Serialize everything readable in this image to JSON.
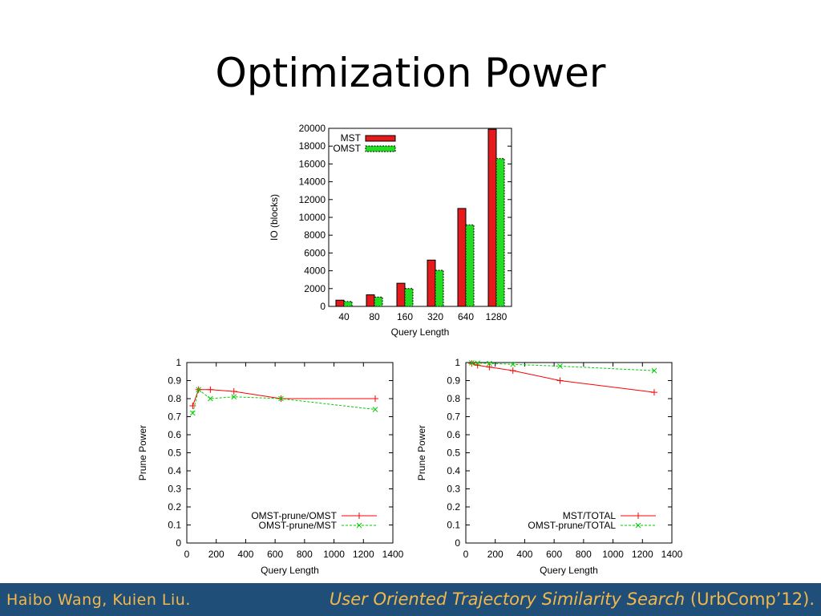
{
  "slide": {
    "title": "Optimization Power"
  },
  "footer": {
    "authors": "Haibo Wang, Kuien Liu.",
    "citation_title": "User Oriented Trajectory Similarity Search",
    "citation_venue": " (UrbComp’12)."
  },
  "chart_data": [
    {
      "type": "bar",
      "xlabel": "Query Length",
      "ylabel": "IO (blocks)",
      "ylim": [
        0,
        20000
      ],
      "yticks": [
        "0",
        "2000",
        "4000",
        "6000",
        "8000",
        "10000",
        "12000",
        "14000",
        "16000",
        "18000",
        "20000"
      ],
      "categories": [
        "40",
        "80",
        "160",
        "320",
        "640",
        "1280"
      ],
      "legend": "top-left",
      "series": [
        {
          "name": "MST",
          "color": "#e41a1c",
          "values": [
            700,
            1300,
            2600,
            5200,
            11000,
            19900
          ]
        },
        {
          "name": "OMST",
          "color": "#22dd22",
          "values": [
            550,
            1050,
            2000,
            4050,
            9150,
            16600
          ]
        }
      ]
    },
    {
      "type": "line",
      "xlabel": "Query Length",
      "ylabel": "Prune Power",
      "xlim": [
        0,
        1400
      ],
      "ylim": [
        0,
        1
      ],
      "xticks": [
        "0",
        "200",
        "400",
        "600",
        "800",
        "1000",
        "1200",
        "1400"
      ],
      "yticks": [
        "0",
        "0.1",
        "0.2",
        "0.3",
        "0.4",
        "0.5",
        "0.6",
        "0.7",
        "0.8",
        "0.9",
        "1"
      ],
      "legend": "bottom-right",
      "series": [
        {
          "name": "OMST-prune/OMST",
          "color": "#ff0000",
          "dashed": false,
          "marker": "plus",
          "x": [
            40,
            80,
            160,
            320,
            640,
            1280
          ],
          "y": [
            0.76,
            0.85,
            0.85,
            0.84,
            0.8,
            0.8
          ]
        },
        {
          "name": "OMST-prune/MST",
          "color": "#00cc00",
          "dashed": true,
          "marker": "cross",
          "x": [
            40,
            80,
            160,
            320,
            640,
            1280
          ],
          "y": [
            0.72,
            0.85,
            0.8,
            0.81,
            0.8,
            0.74
          ]
        }
      ]
    },
    {
      "type": "line",
      "xlabel": "Query Length",
      "ylabel": "Prune Power",
      "xlim": [
        0,
        1400
      ],
      "ylim": [
        0,
        1
      ],
      "xticks": [
        "0",
        "200",
        "400",
        "600",
        "800",
        "1000",
        "1200",
        "1400"
      ],
      "yticks": [
        "0",
        "0.1",
        "0.2",
        "0.3",
        "0.4",
        "0.5",
        "0.6",
        "0.7",
        "0.8",
        "0.9",
        "1"
      ],
      "legend": "bottom-right",
      "series": [
        {
          "name": "MST/TOTAL",
          "color": "#ff0000",
          "dashed": false,
          "marker": "plus",
          "x": [
            40,
            80,
            160,
            320,
            640,
            1280
          ],
          "y": [
            0.995,
            0.985,
            0.975,
            0.955,
            0.9,
            0.835
          ]
        },
        {
          "name": "OMST-prune/TOTAL",
          "color": "#00cc00",
          "dashed": true,
          "marker": "cross",
          "x": [
            40,
            80,
            160,
            320,
            640,
            1280
          ],
          "y": [
            0.998,
            0.997,
            0.995,
            0.99,
            0.98,
            0.955
          ]
        }
      ]
    }
  ]
}
